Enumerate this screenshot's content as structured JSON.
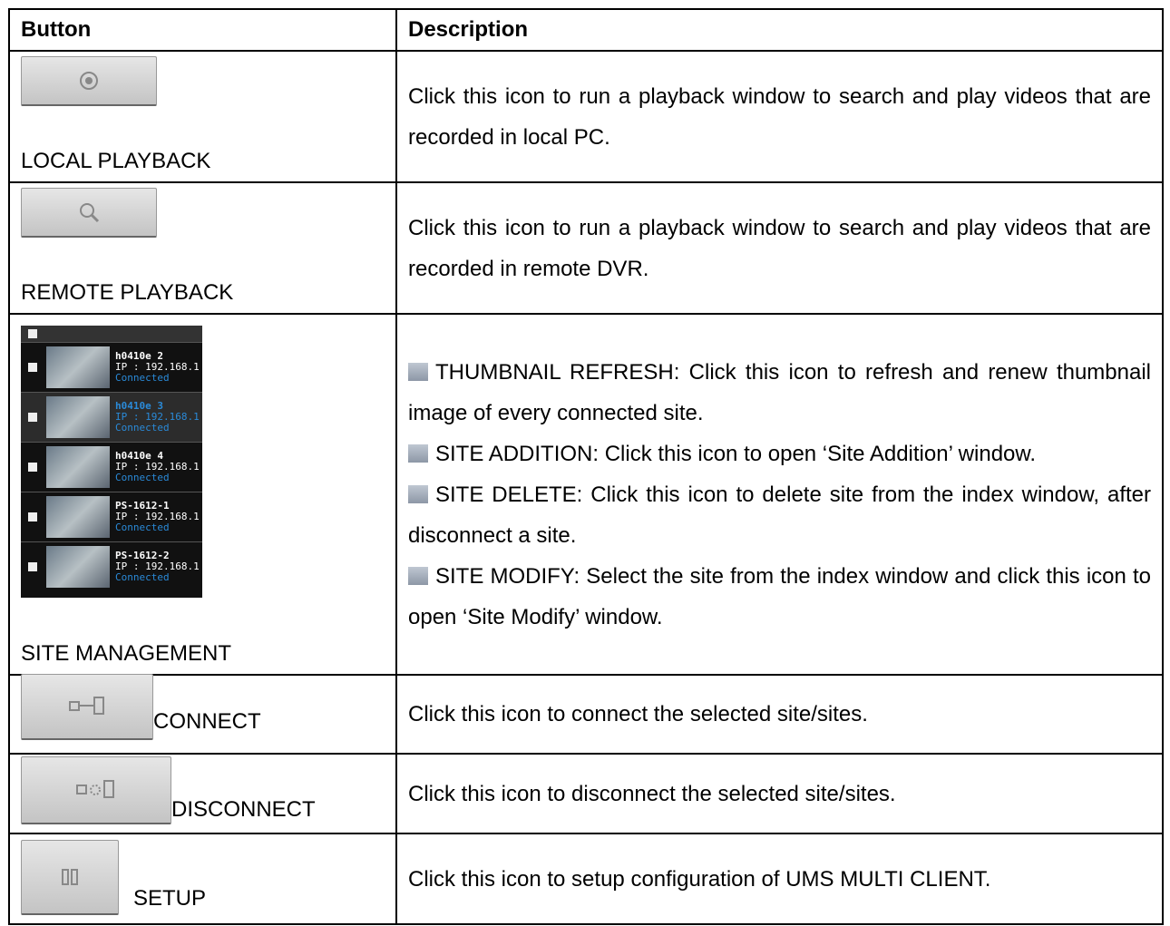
{
  "table": {
    "headers": [
      "Button",
      "Description"
    ],
    "rows": [
      {
        "button": "LOCAL PLAYBACK",
        "description": "Click this icon to run a playback window to search and play videos that are recorded in local PC."
      },
      {
        "button": "REMOTE PLAYBACK",
        "description": "Click this icon to run a playback window to search and play videos that are recorded in remote DVR."
      },
      {
        "button": "SITE MANAGEMENT",
        "sites": [
          {
            "name": "h0410e 2",
            "ip": "IP : 192.168.1",
            "status": "Connected"
          },
          {
            "name": "h0410e 3",
            "ip": "IP : 192.168.1",
            "status": "Connected"
          },
          {
            "name": "h0410e 4",
            "ip": "IP : 192.168.1",
            "status": "Connected"
          },
          {
            "name": "PS-1612-1",
            "ip": "IP : 192.168.1",
            "status": "Connected"
          },
          {
            "name": "PS-1612-2",
            "ip": "IP : 192.168.1",
            "status": "Connected"
          }
        ],
        "items": [
          "THUMBNAIL REFRESH: Click this icon to refresh and renew thumbnail image of every connected site.",
          "SITE ADDITION: Click this icon to open ‘Site Addition’ window.",
          "SITE DELETE: Click this icon to delete site from the index window, after disconnect a site.",
          "SITE MODIFY: Select the site from the index window and click this icon to open ‘Site Modify’ window."
        ]
      },
      {
        "button": "CONNECT",
        "description": "Click this icon to connect the selected site/sites."
      },
      {
        "button": "DISCONNECT",
        "description": "Click this icon to disconnect the selected site/sites."
      },
      {
        "button": "SETUP",
        "description": "Click this icon to setup configuration of UMS MULTI CLIENT."
      }
    ]
  }
}
